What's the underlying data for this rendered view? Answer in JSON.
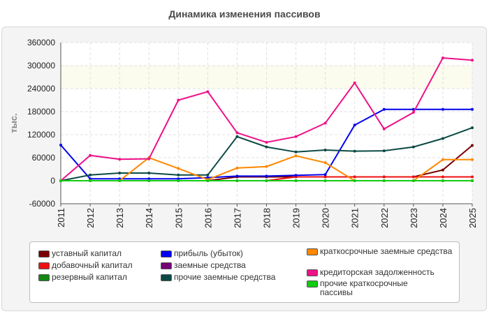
{
  "chart_data": {
    "type": "line",
    "title": "Динамика изменения пассивов",
    "ylabel": "тыс.",
    "xlabel": "",
    "ylim": [
      -60000,
      360000
    ],
    "yticks": [
      "360000",
      "300000",
      "240000",
      "180000",
      "120000",
      "60000",
      "0",
      "-60000"
    ],
    "ytick_values": [
      360000,
      300000,
      240000,
      180000,
      120000,
      60000,
      0,
      -60000
    ],
    "categories": [
      "2011",
      "2012",
      "2013",
      "2014",
      "2015",
      "2016",
      "2017",
      "2018",
      "2019",
      "2020",
      "2021",
      "2022",
      "2023",
      "2024",
      "2025"
    ],
    "grid": true,
    "legend_position": "bottom",
    "series": [
      {
        "name": "уставный капитал",
        "color": "#7a0000",
        "values": [
          0,
          0,
          0,
          0,
          0,
          0,
          10000,
          10000,
          10000,
          10000,
          10000,
          10000,
          10000,
          28000,
          92000
        ]
      },
      {
        "name": "добавочный капитал",
        "color": "#ee1111",
        "values": [
          0,
          0,
          0,
          0,
          0,
          0,
          0,
          0,
          10000,
          10000,
          10000,
          10000,
          10000,
          10000,
          10000
        ]
      },
      {
        "name": "резервный капитал",
        "color": "#118811",
        "values": [
          0,
          0,
          0,
          0,
          0,
          0,
          0,
          0,
          0,
          0,
          0,
          0,
          0,
          0,
          0
        ]
      },
      {
        "name": "прибыль (убыток)",
        "color": "#0000ee",
        "values": [
          93000,
          5000,
          5000,
          5000,
          5000,
          8000,
          12000,
          12000,
          14000,
          16000,
          145000,
          186000,
          186000,
          186000,
          186000
        ]
      },
      {
        "name": "заемные средства",
        "color": "#770077",
        "values": [
          0,
          0,
          0,
          0,
          0,
          0,
          0,
          0,
          0,
          0,
          0,
          0,
          0,
          0,
          0
        ]
      },
      {
        "name": "прочие заемные средства",
        "color": "#0b4a44",
        "values": [
          0,
          15000,
          20000,
          20000,
          15000,
          15000,
          115000,
          88000,
          75000,
          80000,
          77000,
          78000,
          88000,
          110000,
          138000
        ]
      },
      {
        "name": "краткосрочные заемные средства",
        "color": "#ff8800",
        "values": [
          0,
          0,
          0,
          60000,
          32000,
          3000,
          33000,
          37000,
          65000,
          47000,
          0,
          0,
          0,
          55000,
          55000
        ]
      },
      {
        "name": "кредиторская задолженность",
        "color": "#ee1188",
        "values": [
          0,
          66000,
          56000,
          57000,
          210000,
          232000,
          125000,
          100000,
          115000,
          150000,
          255000,
          135000,
          178000,
          320000,
          314000
        ]
      },
      {
        "name": "прочие краткосрочные пассивы",
        "color": "#11cc11",
        "values": [
          0,
          0,
          0,
          0,
          0,
          0,
          0,
          0,
          0,
          0,
          0,
          0,
          0,
          0,
          0
        ]
      }
    ]
  }
}
